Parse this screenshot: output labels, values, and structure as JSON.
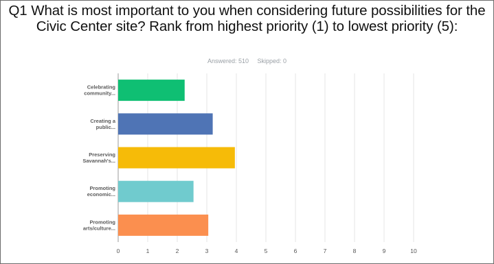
{
  "question": {
    "title": "Q1  What is most important to you when considering future possibilities for the Civic Center site? Rank from highest priority (1) to lowest priority (5):",
    "answered": "Answered: 510",
    "skipped": "Skipped: 0"
  },
  "chart_data": {
    "type": "bar",
    "orientation": "horizontal",
    "title": "",
    "xlabel": "",
    "ylabel": "",
    "xlim": [
      0,
      10
    ],
    "x_ticks": [
      "0",
      "1",
      "2",
      "3",
      "4",
      "5",
      "6",
      "7",
      "8",
      "9",
      "10"
    ],
    "grid": true,
    "categories": [
      [
        "Celebrating",
        "community..."
      ],
      [
        "Creating a",
        "public..."
      ],
      [
        "Preserving",
        "Savannah's..."
      ],
      [
        "Promoting",
        "economic..."
      ],
      [
        "Promoting",
        "arts/culture..."
      ]
    ],
    "values": [
      2.25,
      3.2,
      3.95,
      2.55,
      3.05
    ],
    "colors": [
      "#0fbf73",
      "#4f74b5",
      "#f6bb08",
      "#70cbce",
      "#fb8f4f"
    ]
  }
}
